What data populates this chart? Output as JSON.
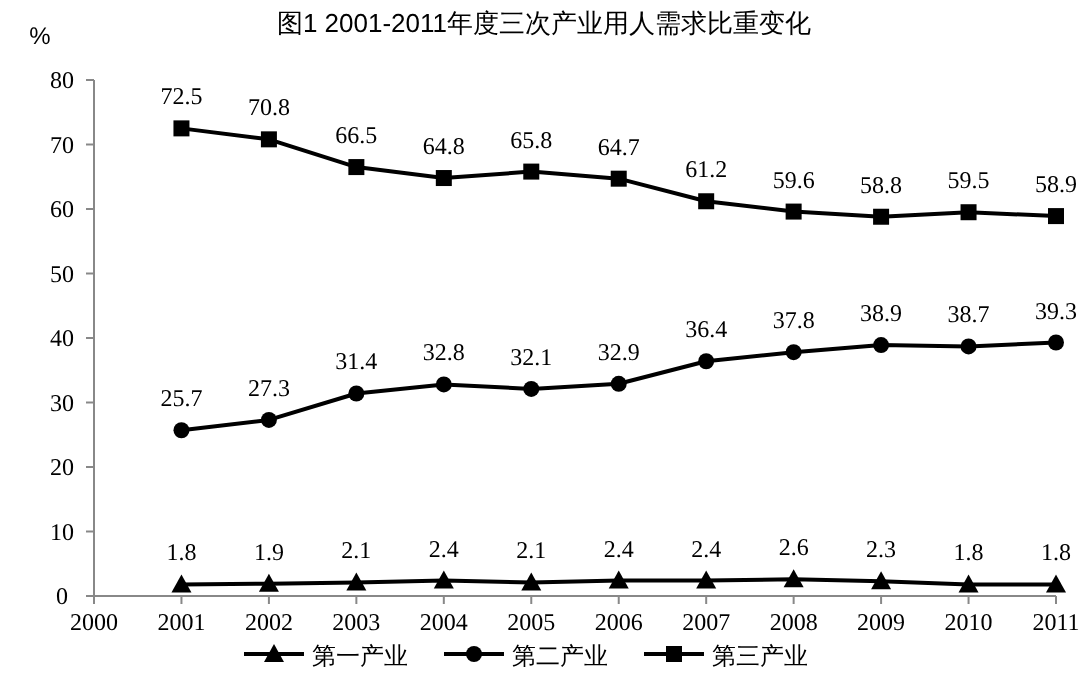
{
  "chart_data": {
    "type": "line",
    "title": "图1  2001-2011年度三次产业用人需求比重变化",
    "ylabel": "%",
    "x": [
      2001,
      2002,
      2003,
      2004,
      2005,
      2006,
      2007,
      2008,
      2009,
      2010,
      2011
    ],
    "xlim": [
      2000,
      2011
    ],
    "xticks": [
      2000,
      2001,
      2002,
      2003,
      2004,
      2005,
      2006,
      2007,
      2008,
      2009,
      2010,
      2011
    ],
    "ylim": [
      0,
      80
    ],
    "yticks": [
      0,
      10,
      20,
      30,
      40,
      50,
      60,
      70,
      80
    ],
    "series": [
      {
        "name": "第一产业",
        "color": "#000000",
        "marker": "triangle",
        "values": [
          1.8,
          1.9,
          2.1,
          2.4,
          2.1,
          2.4,
          2.4,
          2.6,
          2.3,
          1.8,
          1.8
        ]
      },
      {
        "name": "第二产业",
        "color": "#000000",
        "marker": "circle",
        "values": [
          25.7,
          27.3,
          31.4,
          32.8,
          32.1,
          32.9,
          36.4,
          37.8,
          38.9,
          38.7,
          39.3
        ]
      },
      {
        "name": "第三产业",
        "color": "#000000",
        "marker": "square",
        "values": [
          72.5,
          70.8,
          66.5,
          64.8,
          65.8,
          64.7,
          61.2,
          59.6,
          58.8,
          59.5,
          58.9
        ]
      }
    ],
    "data_labels": true,
    "legend": "bottom",
    "grid": false,
    "line_style": "solid"
  }
}
